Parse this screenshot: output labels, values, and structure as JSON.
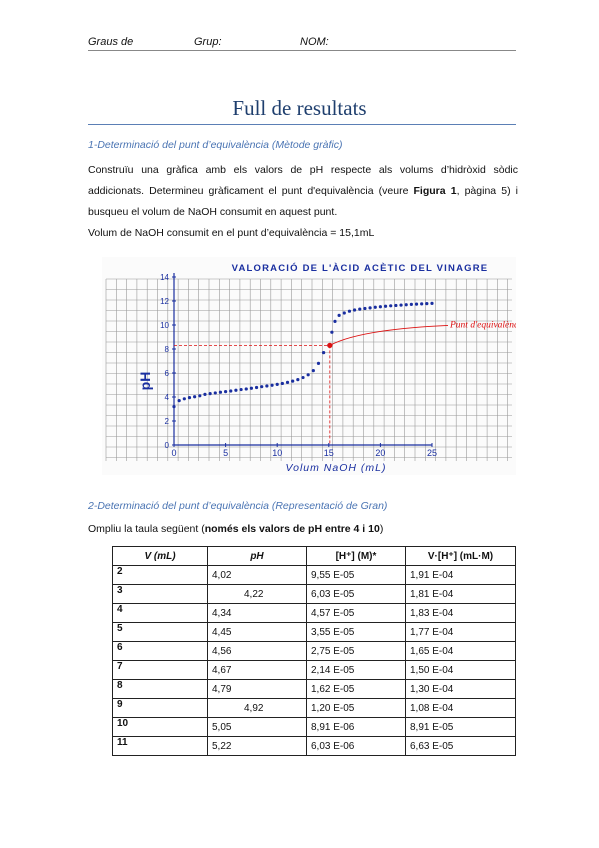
{
  "header": {
    "graus": "Graus de",
    "grup": "Grup:",
    "nom": "NOM:"
  },
  "title": "Full de resultats",
  "section1": {
    "heading": "1-Determinació del punt d’equivalència (Mètode gràfic)",
    "para_a": "Construïu una gràfica amb els valors de pH respecte als volums d’hidròxid sòdic addicionats. Determineu gràficament el punt d'equivalència (veure ",
    "para_bold": "Figura 1",
    "para_b": ", pàgina 5) i busqueu el volum de NaOH consumit en aquest punt.",
    "result": "Volum de NaOH consumit en el punt d’equivalència = 15,1mL"
  },
  "chart_data": {
    "type": "scatter",
    "title": "VALORACIÓ DE L'ÀCID ACÈTIC DEL VINAGRE",
    "xlabel": "Volum NaOH (mL)",
    "ylabel": "pH",
    "xlim": [
      0,
      25
    ],
    "ylim": [
      0,
      14
    ],
    "xticks": [
      "0",
      "5",
      "10",
      "15",
      "20",
      "25"
    ],
    "yticks": [
      "0",
      "2",
      "4",
      "6",
      "8",
      "10",
      "12",
      "14"
    ],
    "annotation": "Punt d'equivalència",
    "equivalence_point": {
      "x": 15.1,
      "y": 8.3
    },
    "x": [
      0,
      0.5,
      1,
      1.5,
      2,
      2.5,
      3,
      3.5,
      4,
      4.5,
      5,
      5.5,
      6,
      6.5,
      7,
      7.5,
      8,
      8.5,
      9,
      9.5,
      10,
      10.5,
      11,
      11.5,
      12,
      12.5,
      13,
      13.5,
      14,
      14.5,
      15,
      15.3,
      15.6,
      16,
      16.5,
      17,
      17.5,
      18,
      18.5,
      19,
      19.5,
      20,
      20.5,
      21,
      21.5,
      22,
      22.5,
      23,
      23.5,
      24,
      24.5,
      25
    ],
    "y": [
      3.2,
      3.7,
      3.85,
      3.95,
      4.02,
      4.1,
      4.22,
      4.28,
      4.34,
      4.4,
      4.45,
      4.5,
      4.56,
      4.62,
      4.67,
      4.73,
      4.79,
      4.86,
      4.92,
      4.98,
      5.05,
      5.13,
      5.22,
      5.32,
      5.45,
      5.62,
      5.85,
      6.2,
      6.8,
      7.7,
      8.3,
      9.4,
      10.3,
      10.8,
      11.0,
      11.15,
      11.25,
      11.32,
      11.38,
      11.43,
      11.48,
      11.52,
      11.56,
      11.6,
      11.63,
      11.66,
      11.69,
      11.72,
      11.74,
      11.76,
      11.78,
      11.8
    ]
  },
  "section2": {
    "heading": "2-Determinació del punt d’equivalència (Representació de Gran)",
    "intro": "Ompliu la taula següent (",
    "intro_bold": "només els valors de pH entre 4 i 10",
    "intro_end": ")"
  },
  "table": {
    "headers": [
      "V (mL)",
      "pH",
      "[H⁺] (M)*",
      "V·[H⁺] (mL·M)"
    ],
    "rows": [
      [
        "2",
        "4,02",
        "9,55 E-05",
        "1,91 E-04"
      ],
      [
        "3",
        "4,22",
        "6,03 E-05",
        "1,81 E-04"
      ],
      [
        "4",
        "4,34",
        "4,57 E-05",
        "1,83 E-04"
      ],
      [
        "5",
        "4,45",
        "3,55 E-05",
        "1,77 E-04"
      ],
      [
        "6",
        "4,56",
        "2,75 E-05",
        "1,65 E-04"
      ],
      [
        "7",
        "4,67",
        "2,14 E-05",
        "1,50 E-04"
      ],
      [
        "8",
        "4,79",
        "1,62 E-05",
        "1,30 E-04"
      ],
      [
        "9",
        "4,92",
        "1,20 E-05",
        "1,08 E-04"
      ],
      [
        "10",
        "5,05",
        "8,91 E-06",
        "8,91 E-05"
      ],
      [
        "11",
        "5,22",
        "6,03 E-06",
        "6,63 E-05"
      ]
    ]
  }
}
